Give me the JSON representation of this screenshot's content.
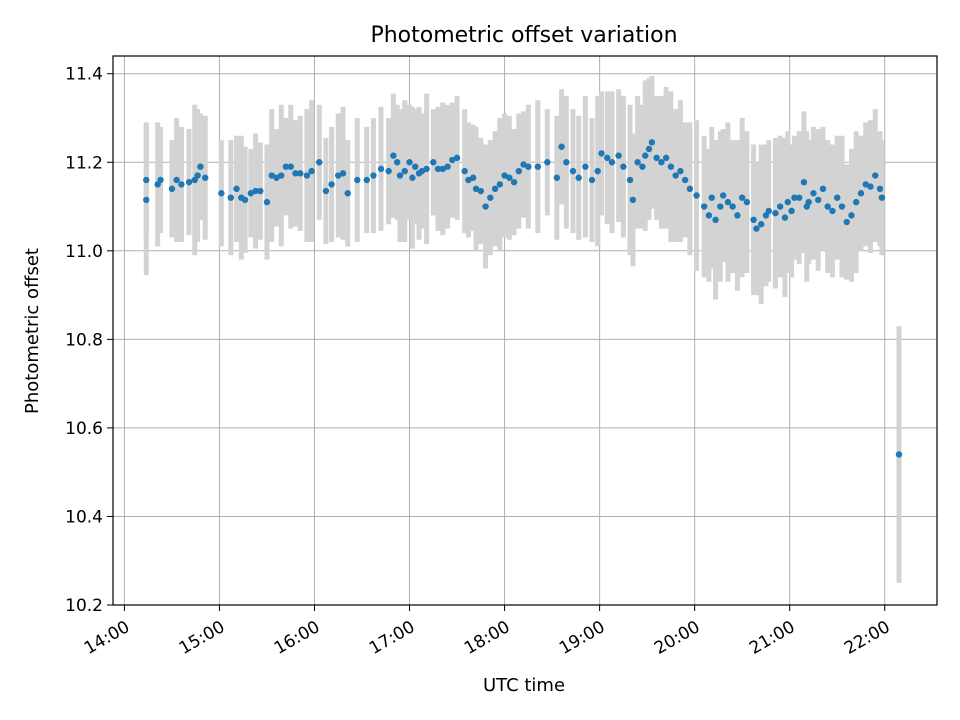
{
  "chart_data": {
    "type": "scatter",
    "title": "Photometric offset variation",
    "xlabel": "UTC time",
    "ylabel": "Photometric offset",
    "x_ticks": [
      "14:00",
      "15:00",
      "16:00",
      "17:00",
      "18:00",
      "19:00",
      "20:00",
      "21:00",
      "22:00"
    ],
    "y_ticks": [
      "10.2",
      "10.4",
      "10.6",
      "10.8",
      "11.0",
      "11.2",
      "11.4"
    ],
    "xlim_hours": [
      13.88,
      22.55
    ],
    "ylim": [
      10.2,
      11.44
    ],
    "grid": true,
    "colors": {
      "points": "#1f77b4",
      "errorbars": "#d3d3d3",
      "grid": "#b0b0b0"
    },
    "series": [
      {
        "x_hours": [
          14.23,
          14.23,
          14.35,
          14.38,
          14.5,
          14.55,
          14.6,
          14.68,
          14.74,
          14.77,
          14.8,
          14.85,
          15.02,
          15.12,
          15.18,
          15.23,
          15.27,
          15.33,
          15.38,
          15.43,
          15.5,
          15.55,
          15.6,
          15.65,
          15.7,
          15.75,
          15.8,
          15.85,
          15.92,
          15.97,
          16.05,
          16.12,
          16.18,
          16.25,
          16.3,
          16.35,
          16.45,
          16.55,
          16.62,
          16.7,
          16.78,
          16.83,
          16.87,
          16.9,
          16.95,
          17.0,
          17.03,
          17.06,
          17.1,
          17.13,
          17.18,
          17.25,
          17.3,
          17.35,
          17.4,
          17.45,
          17.5,
          17.58,
          17.62,
          17.67,
          17.7,
          17.75,
          17.8,
          17.85,
          17.9,
          17.95,
          18.0,
          18.05,
          18.1,
          18.15,
          18.2,
          18.25,
          18.35,
          18.45,
          18.55,
          18.6,
          18.65,
          18.72,
          18.78,
          18.85,
          18.92,
          18.98,
          19.02,
          19.08,
          19.13,
          19.2,
          19.25,
          19.32,
          19.35,
          19.4,
          19.45,
          19.48,
          19.52,
          19.55,
          19.6,
          19.65,
          19.7,
          19.75,
          19.8,
          19.85,
          19.9,
          19.95,
          20.02,
          20.1,
          20.15,
          20.18,
          20.22,
          20.27,
          20.3,
          20.35,
          20.4,
          20.45,
          20.5,
          20.55,
          20.62,
          20.65,
          20.7,
          20.75,
          20.78,
          20.85,
          20.9,
          20.95,
          20.98,
          21.02,
          21.05,
          21.1,
          21.15,
          21.18,
          21.2,
          21.25,
          21.3,
          21.35,
          21.4,
          21.45,
          21.5,
          21.55,
          21.6,
          21.65,
          21.7,
          21.75,
          21.8,
          21.85,
          21.9,
          21.95,
          21.97,
          22.15
        ],
        "y": [
          11.115,
          11.16,
          11.15,
          11.16,
          11.14,
          11.16,
          11.15,
          11.155,
          11.16,
          11.17,
          11.19,
          11.165,
          11.13,
          11.12,
          11.14,
          11.12,
          11.115,
          11.13,
          11.135,
          11.135,
          11.11,
          11.17,
          11.165,
          11.17,
          11.19,
          11.19,
          11.175,
          11.175,
          11.17,
          11.18,
          11.2,
          11.135,
          11.15,
          11.17,
          11.175,
          11.13,
          11.16,
          11.16,
          11.17,
          11.185,
          11.18,
          11.215,
          11.2,
          11.17,
          11.18,
          11.2,
          11.165,
          11.19,
          11.175,
          11.18,
          11.185,
          11.2,
          11.185,
          11.185,
          11.19,
          11.205,
          11.21,
          11.18,
          11.16,
          11.165,
          11.14,
          11.135,
          11.1,
          11.12,
          11.14,
          11.15,
          11.17,
          11.165,
          11.155,
          11.18,
          11.195,
          11.19,
          11.19,
          11.2,
          11.165,
          11.235,
          11.2,
          11.18,
          11.165,
          11.19,
          11.16,
          11.18,
          11.22,
          11.21,
          11.2,
          11.215,
          11.19,
          11.16,
          11.115,
          11.2,
          11.19,
          11.215,
          11.23,
          11.245,
          11.21,
          11.2,
          11.21,
          11.19,
          11.17,
          11.18,
          11.16,
          11.14,
          11.125,
          11.1,
          11.08,
          11.12,
          11.07,
          11.1,
          11.125,
          11.11,
          11.1,
          11.08,
          11.12,
          11.11,
          11.07,
          11.05,
          11.06,
          11.08,
          11.09,
          11.085,
          11.1,
          11.075,
          11.11,
          11.09,
          11.12,
          11.12,
          11.155,
          11.1,
          11.11,
          11.13,
          11.115,
          11.14,
          11.1,
          11.09,
          11.12,
          11.1,
          11.065,
          11.08,
          11.11,
          11.13,
          11.15,
          11.145,
          11.17,
          11.14,
          11.12,
          10.54
        ],
        "err": [
          0.17,
          0.13,
          0.14,
          0.12,
          0.11,
          0.14,
          0.13,
          0.12,
          0.17,
          0.15,
          0.12,
          0.14,
          0.12,
          0.13,
          0.12,
          0.14,
          0.12,
          0.1,
          0.13,
          0.11,
          0.13,
          0.15,
          0.11,
          0.16,
          0.11,
          0.14,
          0.12,
          0.13,
          0.15,
          0.16,
          0.13,
          0.12,
          0.13,
          0.14,
          0.15,
          0.12,
          0.14,
          0.12,
          0.13,
          0.14,
          0.12,
          0.14,
          0.13,
          0.15,
          0.16,
          0.13,
          0.16,
          0.13,
          0.15,
          0.13,
          0.17,
          0.12,
          0.14,
          0.15,
          0.14,
          0.13,
          0.14,
          0.14,
          0.13,
          0.12,
          0.14,
          0.12,
          0.14,
          0.13,
          0.13,
          0.15,
          0.14,
          0.14,
          0.12,
          0.13,
          0.12,
          0.14,
          0.15,
          0.12,
          0.14,
          0.13,
          0.15,
          0.14,
          0.14,
          0.16,
          0.14,
          0.17,
          0.14,
          0.15,
          0.16,
          0.15,
          0.16,
          0.17,
          0.15,
          0.15,
          0.14,
          0.17,
          0.16,
          0.15,
          0.14,
          0.15,
          0.16,
          0.17,
          0.15,
          0.16,
          0.13,
          0.15,
          0.17,
          0.16,
          0.15,
          0.16,
          0.18,
          0.17,
          0.15,
          0.18,
          0.15,
          0.17,
          0.18,
          0.16,
          0.17,
          0.15,
          0.18,
          0.16,
          0.16,
          0.17,
          0.16,
          0.18,
          0.16,
          0.15,
          0.14,
          0.15,
          0.16,
          0.17,
          0.14,
          0.15,
          0.16,
          0.14,
          0.15,
          0.15,
          0.14,
          0.16,
          0.13,
          0.15,
          0.16,
          0.13,
          0.14,
          0.15,
          0.15,
          0.13,
          0.13,
          0.29
        ]
      }
    ]
  }
}
